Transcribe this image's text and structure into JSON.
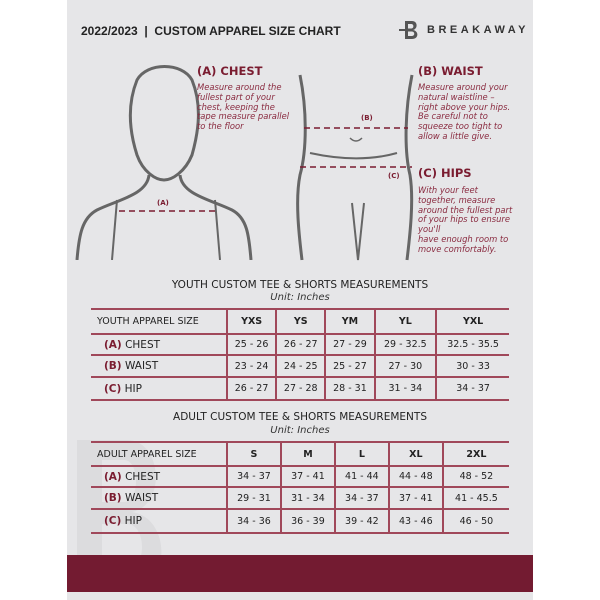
{
  "header": {
    "title": "2022/2023  |  CUSTOM APPAREL SIZE CHART",
    "brand": "BREAKAWAY",
    "logo_letter": "B"
  },
  "measures": {
    "chest": {
      "heading": "(A) CHEST",
      "text": "Measure around the\nfullest part of your\nchest, keeping the\ntape measure parallel\nto the floor",
      "marker": "(A)"
    },
    "waist": {
      "heading": "(B) WAIST",
      "text": "Measure around your\nnatural waistline –\nright above your hips.\nBe careful not to\nsqueeze too tight to\nallow a little give.",
      "marker": "(B)"
    },
    "hips": {
      "heading": "(C) HIPS",
      "text": "With your feet\ntogether, measure\naround the fullest part\nof your hips to ensure\nyou'll\nhave enough room to\nmove comfortably.",
      "marker": "(C)"
    }
  },
  "youth": {
    "title": "YOUTH CUSTOM TEE & SHORTS MEASUREMENTS",
    "unit": "Unit: Inches",
    "corner": "YOUTH APPAREL SIZE",
    "sizes": [
      "YXS",
      "YS",
      "YM",
      "YL",
      "YXL"
    ],
    "rows": [
      {
        "letter": "(A)",
        "label": "CHEST",
        "values": [
          "25 - 26",
          "26 - 27",
          "27 - 29",
          "29 - 32.5",
          "32.5 - 35.5"
        ]
      },
      {
        "letter": "(B)",
        "label": "WAIST",
        "values": [
          "23 - 24",
          "24 - 25",
          "25 - 27",
          "27 - 30",
          "30 - 33"
        ]
      },
      {
        "letter": "(C)",
        "label": "HIP",
        "values": [
          "26 - 27",
          "27 - 28",
          "28 - 31",
          "31 - 34",
          "34 - 37"
        ]
      }
    ]
  },
  "adult": {
    "title": "ADULT CUSTOM TEE & SHORTS MEASUREMENTS",
    "unit": "Unit: Inches",
    "corner": "ADULT APPAREL SIZE",
    "sizes": [
      "S",
      "M",
      "L",
      "XL",
      "2XL"
    ],
    "rows": [
      {
        "letter": "(A)",
        "label": "CHEST",
        "values": [
          "34 - 37",
          "37 - 41",
          "41 - 44",
          "44 - 48",
          "48 - 52"
        ]
      },
      {
        "letter": "(B)",
        "label": "WAIST",
        "values": [
          "29 - 31",
          "31 - 34",
          "34 - 37",
          "37 - 41",
          "41 - 45.5"
        ]
      },
      {
        "letter": "(C)",
        "label": "HIP",
        "values": [
          "34 - 36",
          "36 - 39",
          "39 - 42",
          "43 - 46",
          "46 - 50"
        ]
      }
    ]
  },
  "colors": {
    "accent": "#731b31",
    "background": "#e6e6e8"
  }
}
